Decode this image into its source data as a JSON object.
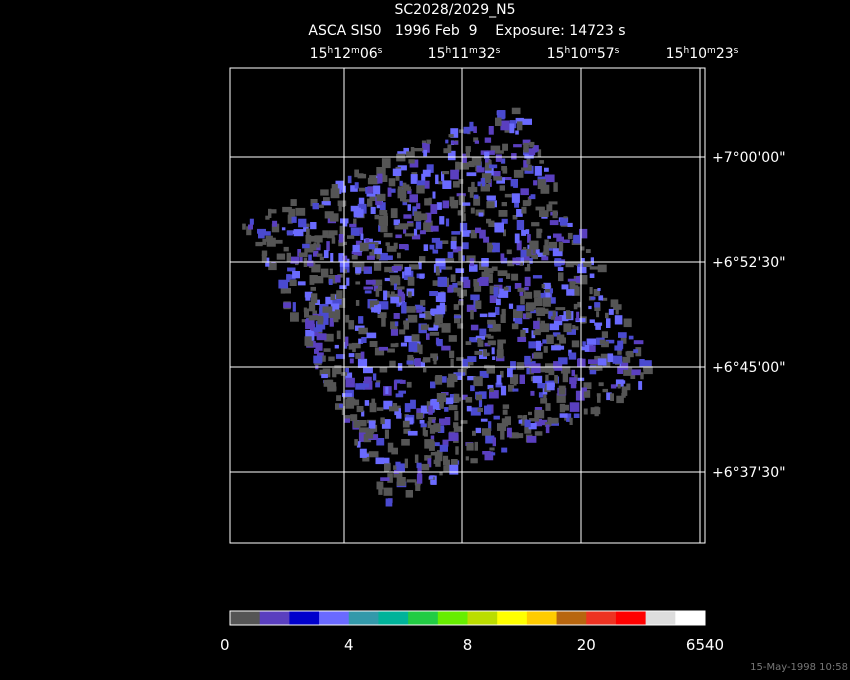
{
  "header": {
    "title": "SC2028/2029_N5",
    "subtitle": "ASCA SIS0   1996 Feb  9    Exposure: 14723 s"
  },
  "ra_labels": [
    [
      "15",
      "h",
      "12",
      "m",
      "06",
      "s"
    ],
    [
      "15",
      "h",
      "11",
      "m",
      "32",
      "s"
    ],
    [
      "15",
      "h",
      "10",
      "m",
      "57",
      "s"
    ],
    [
      "15",
      "h",
      "10",
      "m",
      "23",
      "s"
    ]
  ],
  "dec_labels": [
    "+7°00'00\"",
    "+6°52'30\"",
    "+6°45'00\"",
    "+6°37'30\""
  ],
  "colorbar": {
    "labels": [
      0,
      4,
      8,
      20,
      6540
    ],
    "colors": [
      "#555555",
      "#5a3fbf",
      "#0000cc",
      "#6a6aff",
      "#3399aa",
      "#00b39a",
      "#22cc44",
      "#66ee00",
      "#bbdd00",
      "#ffff00",
      "#ffcc00",
      "#b8660f",
      "#ee3322",
      "#ff0000",
      "#dddddd",
      "#ffffff"
    ]
  },
  "footer": "15-May-1998 10:58"
}
